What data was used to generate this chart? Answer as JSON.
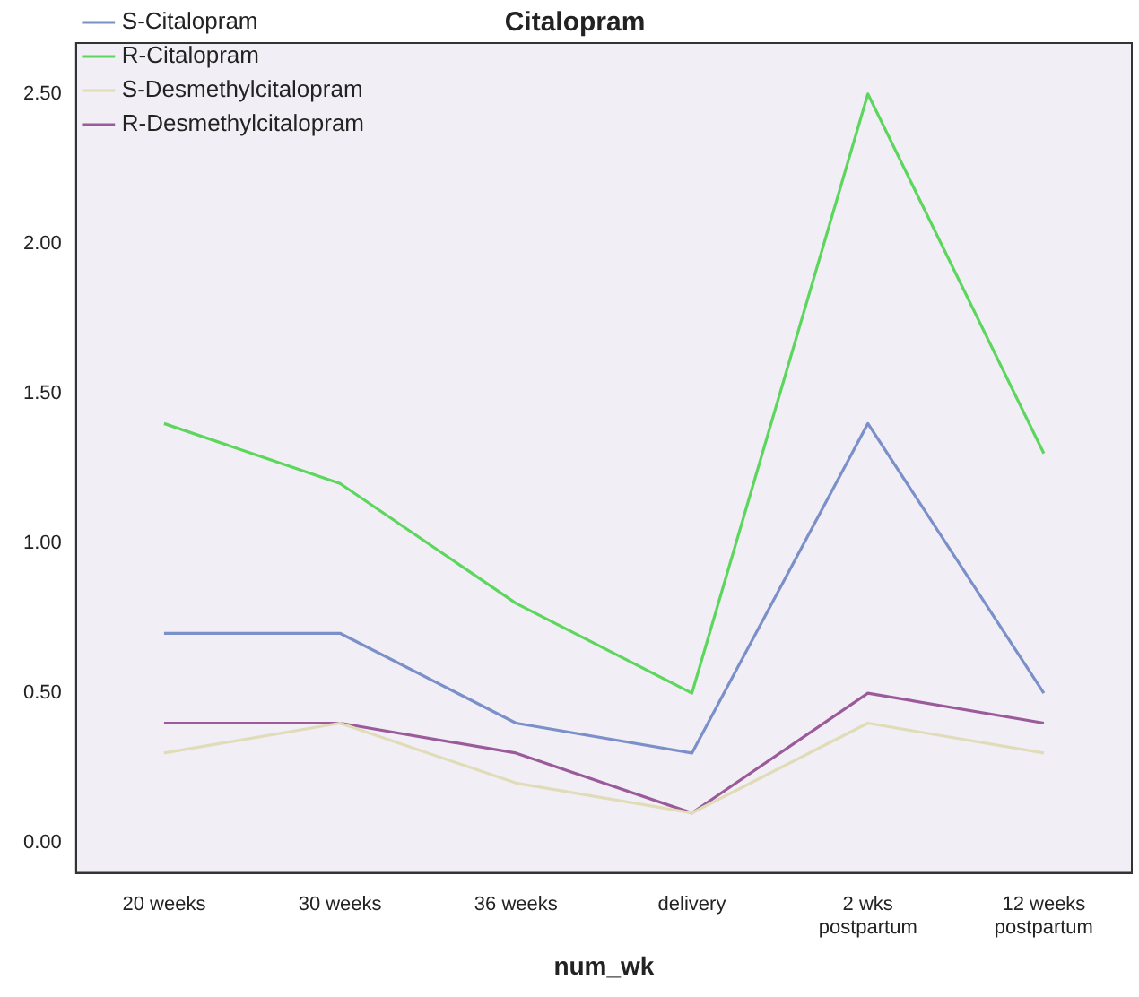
{
  "chart_data": {
    "type": "line",
    "title": "Citalopram",
    "xlabel": "num_wk",
    "categories": [
      "20 weeks",
      "30 weeks",
      "36 weeks",
      "delivery",
      "2 wks\npostpartum",
      "12 weeks\npostpartum"
    ],
    "series": [
      {
        "name": "S-Citalopram",
        "color": "#7b8fc9",
        "values": [
          0.7,
          0.7,
          0.4,
          0.3,
          1.4,
          0.5
        ]
      },
      {
        "name": "R-Citalopram",
        "color": "#5cd65c",
        "values": [
          1.4,
          1.2,
          0.8,
          0.5,
          2.5,
          1.3
        ]
      },
      {
        "name": "S-Desmethylcitalopram",
        "color": "#e0dcb8",
        "values": [
          0.3,
          0.4,
          0.2,
          0.1,
          0.4,
          0.3
        ]
      },
      {
        "name": "R-Desmethylcitalopram",
        "color": "#9b5b9b",
        "values": [
          0.4,
          0.4,
          0.3,
          0.1,
          0.5,
          0.4
        ]
      }
    ],
    "ylim": [
      -0.1,
      2.67
    ],
    "yticks": [
      {
        "value": 0,
        "label": "0.00"
      },
      {
        "value": 0.5,
        "label": "0.50"
      },
      {
        "value": 1,
        "label": "1.00"
      },
      {
        "value": 1.5,
        "label": "1.50"
      },
      {
        "value": 2,
        "label": "2.00"
      },
      {
        "value": 2.5,
        "label": "2.50"
      }
    ],
    "grid": false,
    "legend": "top left",
    "marker": "none",
    "line_style": "solid"
  }
}
